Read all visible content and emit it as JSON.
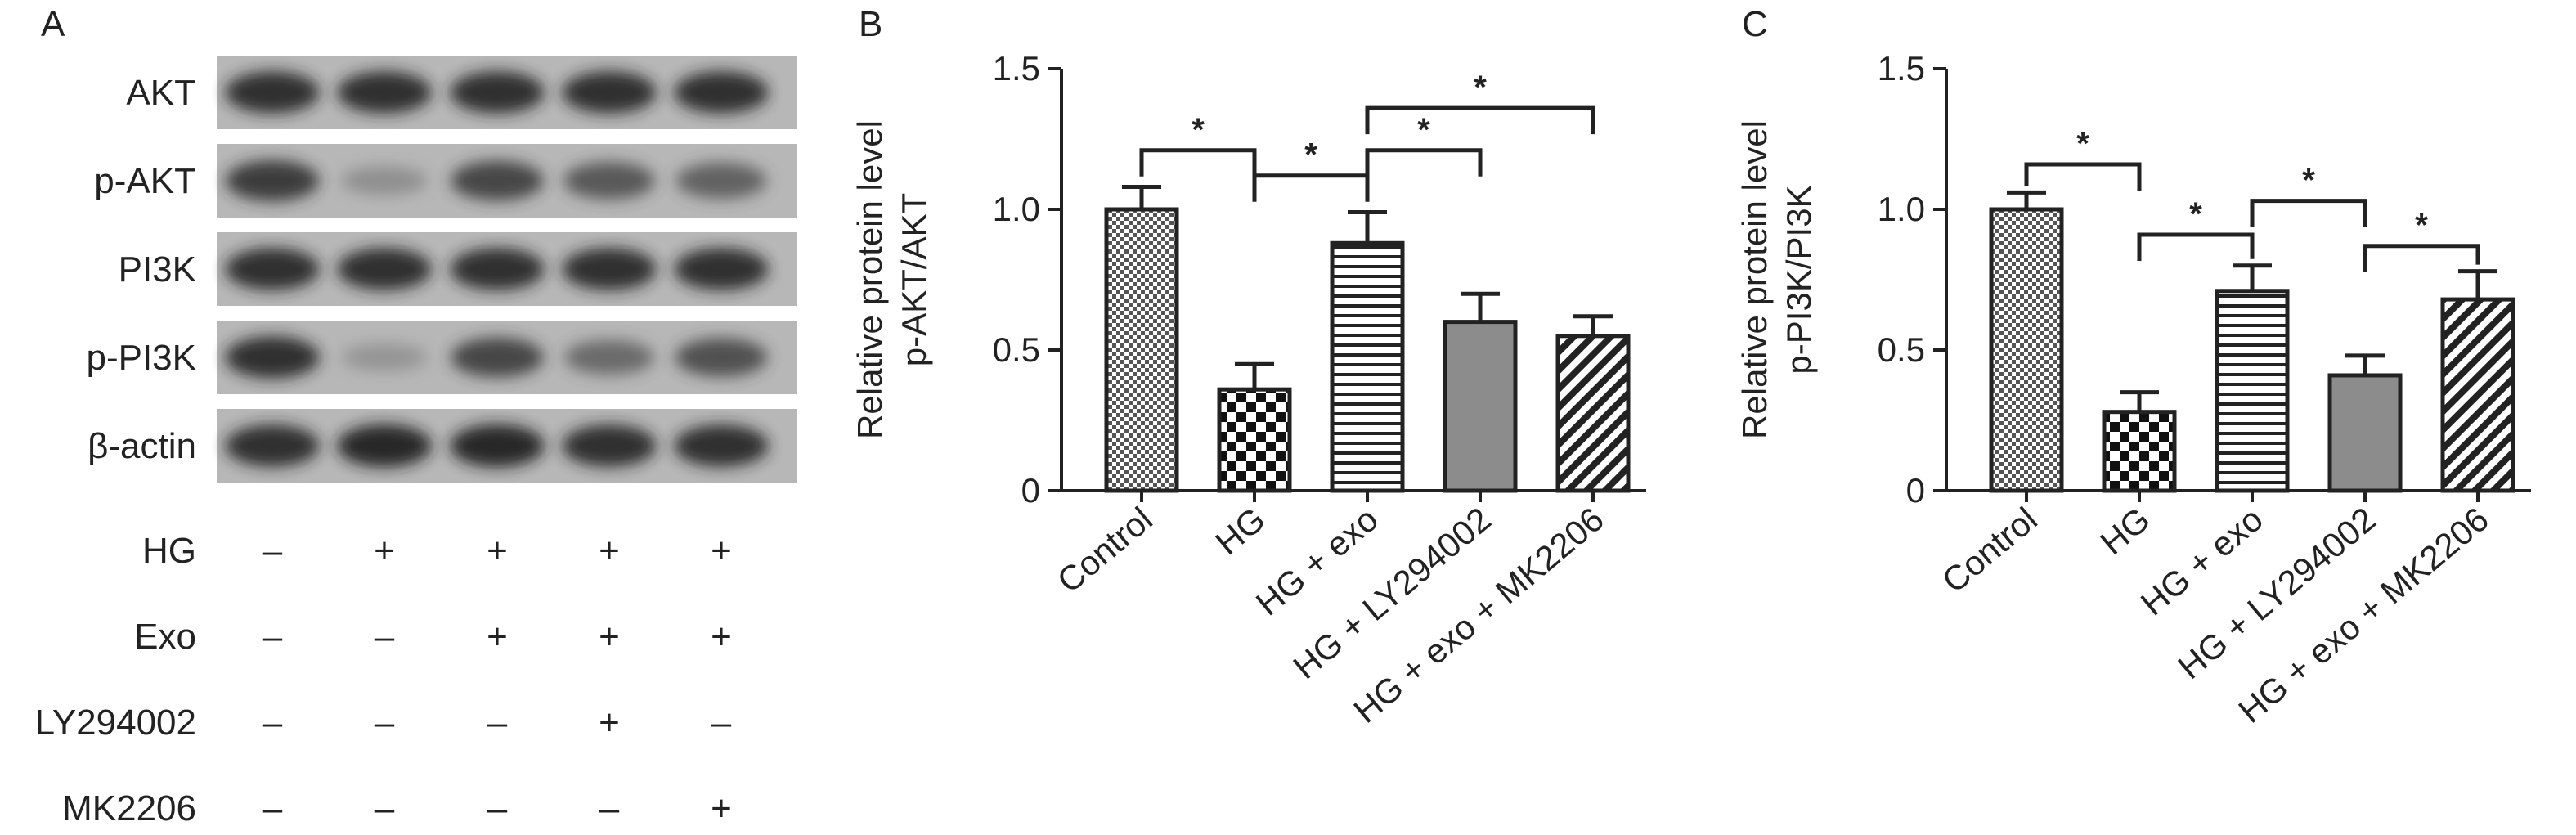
{
  "panel_a": {
    "letter": "A",
    "blot_rows": [
      "AKT",
      "p-AKT",
      "PI3K",
      "p-PI3K",
      "β-actin"
    ],
    "band_intensity": [
      [
        0.85,
        0.85,
        0.85,
        0.85,
        0.85
      ],
      [
        0.8,
        0.3,
        0.75,
        0.65,
        0.6
      ],
      [
        0.85,
        0.85,
        0.85,
        0.85,
        0.85
      ],
      [
        0.85,
        0.25,
        0.75,
        0.55,
        0.7
      ],
      [
        0.85,
        0.88,
        0.88,
        0.85,
        0.85
      ]
    ],
    "treatments": [
      {
        "label": "HG",
        "signs": [
          "–",
          "+",
          "+",
          "+",
          "+"
        ]
      },
      {
        "label": "Exo",
        "signs": [
          "–",
          "–",
          "+",
          "+",
          "+"
        ]
      },
      {
        "label": "LY294002",
        "signs": [
          "–",
          "–",
          "–",
          "+",
          "–"
        ]
      },
      {
        "label": "MK2206",
        "signs": [
          "–",
          "–",
          "–",
          "–",
          "+"
        ]
      }
    ]
  },
  "chart_data": [
    {
      "panel": "B",
      "type": "bar",
      "ylabel": "Relative protein level",
      "ylabel2": "p-AKT/AKT",
      "ylim": [
        0,
        1.5
      ],
      "yticks": [
        "0",
        "0.5",
        "1.0",
        "1.5"
      ],
      "categories": [
        "Control",
        "HG",
        "HG + exo",
        "HG + LY294002",
        "HG + exo + MK2206"
      ],
      "values": [
        1.0,
        0.36,
        0.88,
        0.6,
        0.55
      ],
      "errors": [
        0.08,
        0.09,
        0.11,
        0.1,
        0.07
      ],
      "significance": [
        {
          "from": 0,
          "to": 1,
          "level": 1.21,
          "label": "*"
        },
        {
          "from": 1,
          "to": 2,
          "level": 1.12,
          "label": "*"
        },
        {
          "from": 2,
          "to": 3,
          "level": 1.21,
          "label": "*"
        },
        {
          "from": 2,
          "to": 4,
          "level": 1.36,
          "label": "*"
        }
      ]
    },
    {
      "panel": "C",
      "type": "bar",
      "ylabel": "Relative protein level",
      "ylabel2": "p-PI3K/PI3K",
      "ylim": [
        0,
        1.5
      ],
      "yticks": [
        "0",
        "0.5",
        "1.0",
        "1.5"
      ],
      "categories": [
        "Control",
        "HG",
        "HG + exo",
        "HG + LY294002",
        "HG + exo + MK2206"
      ],
      "values": [
        1.0,
        0.28,
        0.71,
        0.41,
        0.68
      ],
      "errors": [
        0.06,
        0.07,
        0.09,
        0.07,
        0.1
      ],
      "significance": [
        {
          "from": 0,
          "to": 1,
          "level": 1.16,
          "label": "*"
        },
        {
          "from": 1,
          "to": 2,
          "level": 0.91,
          "label": "*"
        },
        {
          "from": 2,
          "to": 3,
          "level": 1.03,
          "label": "*"
        },
        {
          "from": 3,
          "to": 4,
          "level": 0.87,
          "label": "*"
        }
      ]
    }
  ]
}
